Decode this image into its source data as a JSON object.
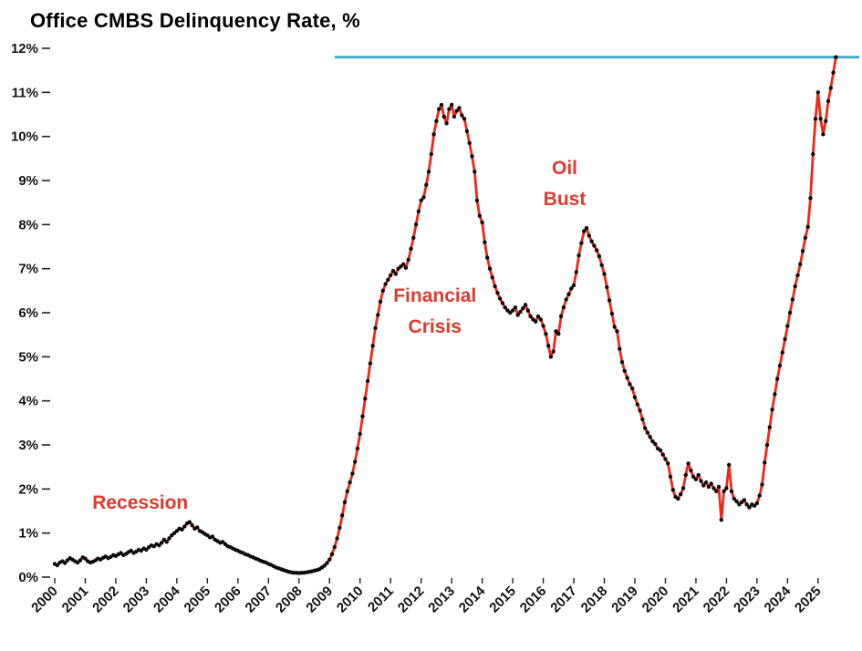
{
  "colors": {
    "line": "#f02718",
    "marker": "#0a0a0a",
    "reference_line": "#41a8cb",
    "annotation": "#e0392e",
    "axis_text": "#141414"
  },
  "chart_data": {
    "type": "line",
    "title": "Office CMBS Delinquency Rate, %",
    "xlabel": "",
    "ylabel": "",
    "grid": false,
    "legend": "none",
    "ylim": [
      0,
      12
    ],
    "xlim": [
      2000,
      2026.2
    ],
    "y_axis": {
      "ticks": [
        "0%",
        "1%",
        "2%",
        "3%",
        "4%",
        "5%",
        "6%",
        "7%",
        "8%",
        "9%",
        "10%",
        "11%",
        "12%"
      ]
    },
    "x_axis": {
      "ticks": [
        "2000",
        "2001",
        "2002",
        "2003",
        "2004",
        "2005",
        "2006",
        "2007",
        "2008",
        "2009",
        "2010",
        "2011",
        "2012",
        "2013",
        "2014",
        "2015",
        "2016",
        "2017",
        "2018",
        "2019",
        "2020",
        "2021",
        "2022",
        "2023",
        "2024",
        "2025"
      ]
    },
    "reference_line": {
      "value": 11.8,
      "x_start": 2009.2,
      "color": "#41a8cb"
    },
    "annotations": [
      {
        "id": "recession",
        "lines": [
          "Recession"
        ],
        "x": 2002.8,
        "y": 1.55
      },
      {
        "id": "financial-crisis",
        "lines": [
          "Financial",
          "Crisis"
        ],
        "x": 2012.45,
        "y": 6.25
      },
      {
        "id": "oil-bust",
        "lines": [
          "Oil",
          "Bust"
        ],
        "x": 2016.7,
        "y": 9.15
      }
    ],
    "series": [
      {
        "name": "Office CMBS delinquency rate",
        "start_year": 2000,
        "frequency": "monthly",
        "values": [
          0.3,
          0.27,
          0.33,
          0.36,
          0.32,
          0.38,
          0.43,
          0.4,
          0.36,
          0.33,
          0.38,
          0.45,
          0.42,
          0.36,
          0.33,
          0.35,
          0.38,
          0.42,
          0.4,
          0.44,
          0.47,
          0.43,
          0.46,
          0.5,
          0.48,
          0.52,
          0.55,
          0.5,
          0.53,
          0.57,
          0.6,
          0.55,
          0.58,
          0.62,
          0.6,
          0.65,
          0.62,
          0.68,
          0.72,
          0.7,
          0.75,
          0.72,
          0.78,
          0.85,
          0.8,
          0.88,
          0.95,
          1.0,
          1.05,
          1.1,
          1.08,
          1.15,
          1.22,
          1.25,
          1.18,
          1.1,
          1.13,
          1.05,
          1.02,
          0.98,
          0.95,
          0.9,
          0.92,
          0.85,
          0.82,
          0.78,
          0.8,
          0.75,
          0.7,
          0.68,
          0.65,
          0.62,
          0.6,
          0.57,
          0.55,
          0.52,
          0.5,
          0.47,
          0.45,
          0.42,
          0.4,
          0.37,
          0.35,
          0.33,
          0.3,
          0.28,
          0.25,
          0.22,
          0.2,
          0.18,
          0.16,
          0.14,
          0.12,
          0.11,
          0.1,
          0.1,
          0.09,
          0.1,
          0.1,
          0.11,
          0.12,
          0.13,
          0.15,
          0.16,
          0.18,
          0.22,
          0.26,
          0.32,
          0.4,
          0.52,
          0.68,
          0.88,
          1.12,
          1.4,
          1.7,
          1.95,
          2.15,
          2.35,
          2.62,
          2.92,
          3.25,
          3.65,
          4.05,
          4.45,
          4.85,
          5.25,
          5.65,
          5.95,
          6.25,
          6.5,
          6.65,
          6.75,
          6.85,
          6.95,
          6.88,
          7.0,
          7.05,
          7.1,
          7.02,
          7.2,
          7.45,
          7.7,
          8.0,
          8.3,
          8.55,
          8.62,
          8.9,
          9.2,
          9.6,
          10.05,
          10.35,
          10.62,
          10.72,
          10.45,
          10.3,
          10.62,
          10.72,
          10.45,
          10.58,
          10.65,
          10.48,
          10.4,
          10.12,
          9.85,
          9.55,
          9.2,
          8.55,
          8.2,
          8.05,
          7.6,
          7.25,
          7.0,
          6.8,
          6.6,
          6.45,
          6.32,
          6.22,
          6.12,
          6.05,
          6.0,
          6.05,
          6.12,
          5.95,
          6.02,
          6.1,
          6.18,
          6.05,
          5.92,
          5.85,
          5.8,
          5.92,
          5.85,
          5.7,
          5.52,
          5.25,
          5.0,
          5.12,
          5.58,
          5.52,
          5.92,
          6.12,
          6.3,
          6.42,
          6.55,
          6.62,
          6.92,
          7.3,
          7.58,
          7.85,
          7.92,
          7.75,
          7.62,
          7.52,
          7.42,
          7.28,
          7.08,
          6.88,
          6.58,
          6.28,
          5.98,
          5.68,
          5.58,
          5.18,
          4.88,
          4.68,
          4.52,
          4.38,
          4.28,
          4.08,
          3.92,
          3.78,
          3.58,
          3.38,
          3.28,
          3.18,
          3.08,
          3.02,
          2.92,
          2.88,
          2.78,
          2.68,
          2.58,
          2.28,
          1.98,
          1.82,
          1.78,
          1.88,
          2.02,
          2.32,
          2.58,
          2.42,
          2.28,
          2.22,
          2.32,
          2.18,
          2.08,
          2.15,
          2.05,
          2.12,
          2.02,
          1.95,
          2.05,
          1.3,
          1.95,
          2.02,
          2.55,
          1.95,
          1.78,
          1.72,
          1.65,
          1.7,
          1.75,
          1.65,
          1.58,
          1.65,
          1.62,
          1.68,
          1.85,
          2.1,
          2.6,
          3.0,
          3.4,
          3.8,
          4.15,
          4.5,
          4.8,
          5.1,
          5.4,
          5.7,
          6.0,
          6.3,
          6.6,
          6.85,
          7.1,
          7.4,
          7.7,
          7.95,
          8.6,
          9.6,
          10.4,
          11.0,
          10.4,
          10.05,
          10.35,
          10.8,
          11.1,
          11.45,
          11.8
        ]
      }
    ]
  }
}
